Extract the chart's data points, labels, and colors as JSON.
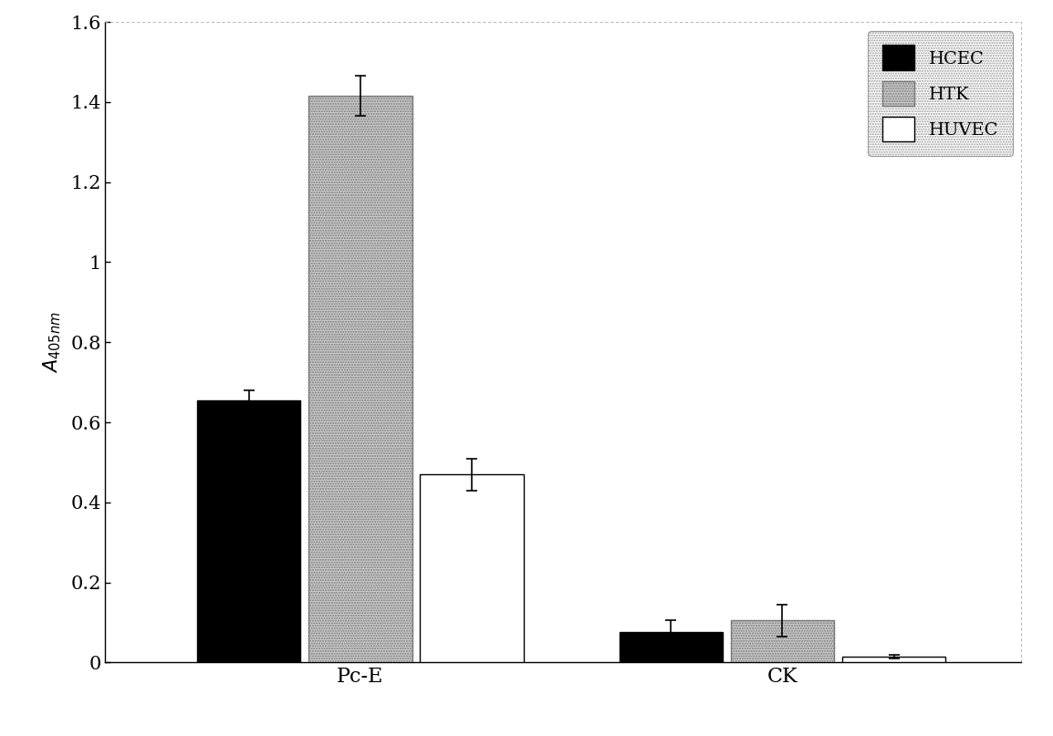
{
  "groups": [
    "Pc-E",
    "CK"
  ],
  "series": [
    "HCEC",
    "HTK",
    "HUVEC"
  ],
  "values": {
    "Pc-E": [
      0.655,
      1.415,
      0.47
    ],
    "CK": [
      0.075,
      0.105,
      0.015
    ]
  },
  "errors": {
    "Pc-E": [
      0.025,
      0.05,
      0.04
    ],
    "CK": [
      0.03,
      0.04,
      0.005
    ]
  },
  "ylim": [
    0,
    1.6
  ],
  "yticks": [
    0,
    0.2,
    0.4,
    0.6,
    0.8,
    1.0,
    1.2,
    1.4,
    1.6
  ],
  "background_color": "#ffffff",
  "bar_width": 0.13,
  "group_centers": [
    0.32,
    0.85
  ],
  "xlim": [
    0.0,
    1.15
  ]
}
